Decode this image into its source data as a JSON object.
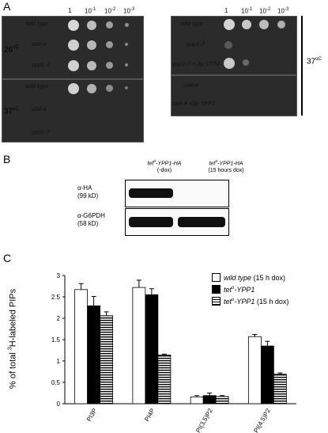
{
  "panels": {
    "a": "A",
    "b": "B",
    "c": "C"
  },
  "panel_a": {
    "dilutions": [
      "1",
      "10",
      "-1",
      "10",
      "-2",
      "10",
      "-3"
    ],
    "left": {
      "temp_top": "26",
      "temp_bottom": "37",
      "degree_unit": "oC",
      "strains_top": [
        "wild type",
        "stt4-4",
        "ypp1-7"
      ],
      "strains_bottom": [
        "wild type",
        "stt4-4",
        "ypp1-7"
      ]
    },
    "right": {
      "temp": "37",
      "degree_unit": "oC",
      "strains_top": [
        "wild type",
        "ypp1-7",
        "ypp1-7 + 2μ STT4"
      ],
      "strains_bottom": [
        "stt4-4",
        "stt4-4 +2μ YPP1"
      ]
    }
  },
  "panel_b": {
    "col1_line1": "tet",
    "col1_sup": "o",
    "col1_line1_rest": "-YPP1-HA",
    "col1_line2": "(-dox)",
    "col2_line1": "tet",
    "col2_sup": "o",
    "col2_line1_rest": "-YPP1-HA",
    "col2_line2": "(15 hours dox)",
    "row1_label": "α-HA",
    "row1_sub": "(99 kD)",
    "row2_label": "α-G6PDH",
    "row2_sub": "(58 kD)"
  },
  "chart_data": {
    "type": "bar",
    "ylabel_prefix": "% of total ",
    "ylabel_sup": "3",
    "ylabel_suffix": "H-labeled PIPs",
    "ylim": [
      0,
      3
    ],
    "yticks": [
      "0",
      "0.5",
      "1",
      "1.5",
      "2",
      "2.5",
      "3"
    ],
    "categories": [
      "PI3P",
      "PI4P",
      "PI(3,5)P2",
      "PI(4,5)P2"
    ],
    "series": [
      {
        "name": "wild type (15 h dox)",
        "values": [
          2.67,
          2.72,
          0.16,
          1.57
        ],
        "errors": [
          0.14,
          0.17,
          0.03,
          0.05
        ],
        "fill": "white"
      },
      {
        "name": "tet°-YPP1",
        "values": [
          2.29,
          2.55,
          0.19,
          1.35
        ],
        "errors": [
          0.22,
          0.14,
          0.06,
          0.11
        ],
        "fill": "black"
      },
      {
        "name": "tet°-YPP1 (15 h dox)",
        "values": [
          2.06,
          1.14,
          0.17,
          0.69
        ],
        "errors": [
          0.09,
          0.02,
          0.02,
          0.03
        ],
        "fill": "striped"
      }
    ],
    "legend": {
      "l1_italic": "wild type",
      "l1_rest": " (15 h dox)",
      "l2_a": "tet",
      "l2_sup": "o",
      "l2_b": "-YPP1",
      "l3_a": "tet",
      "l3_sup": "o",
      "l3_b": "-YPP1",
      "l3_rest": " (15 h dox)"
    }
  }
}
